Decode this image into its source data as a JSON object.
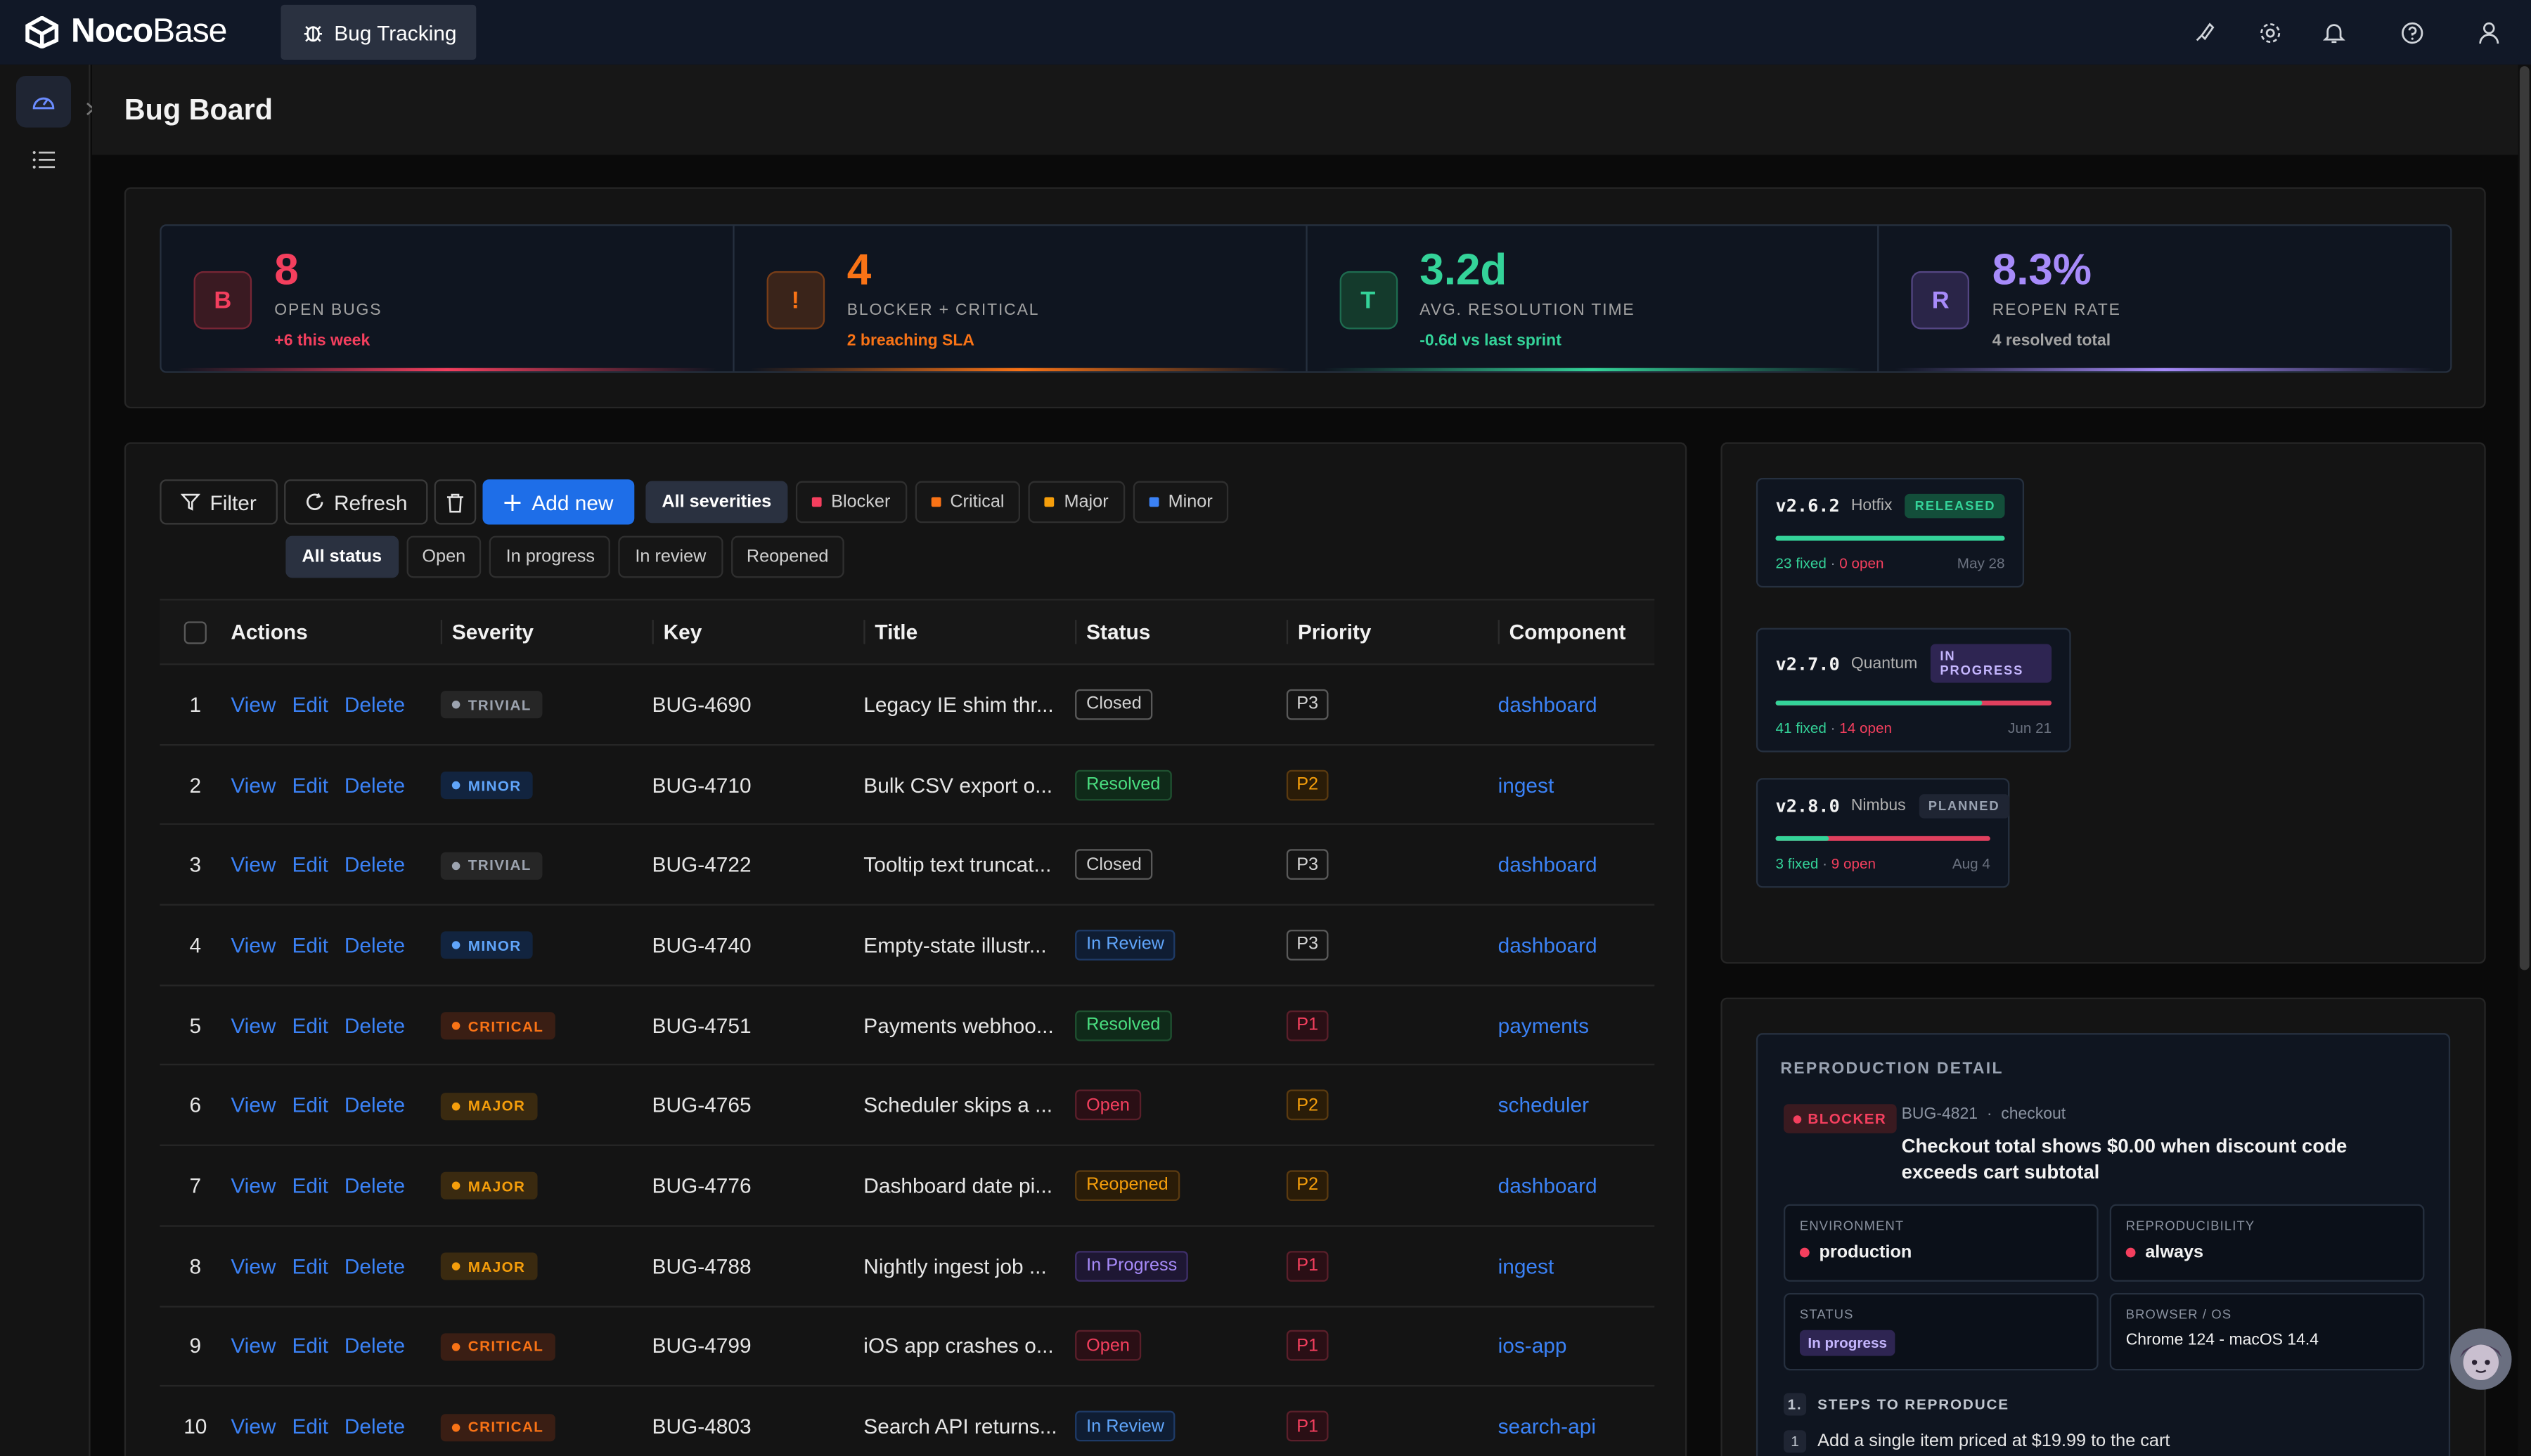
{
  "app": {
    "logo_bold": "Noco",
    "logo_light": "Base",
    "tab_label": "Bug Tracking",
    "page_title": "Bug Board"
  },
  "stats": [
    {
      "avatar": "B",
      "value": "8",
      "label": "OPEN BUGS",
      "sub": "+6 this week",
      "color": "#f43f5e",
      "sub_color": "#f43f5e"
    },
    {
      "avatar": "!",
      "value": "4",
      "label": "BLOCKER + CRITICAL",
      "sub": "2 breaching SLA",
      "color": "#f97316",
      "sub_color": "#f97316"
    },
    {
      "avatar": "T",
      "value": "3.2d",
      "label": "AVG. RESOLUTION TIME",
      "sub": "-0.6d vs last sprint",
      "color": "#34d399",
      "sub_color": "#34d399"
    },
    {
      "avatar": "R",
      "value": "8.3%",
      "label": "REOPEN RATE",
      "sub": "4 resolved total",
      "color": "#a78bfa",
      "sub_color": "#a3a3a3"
    }
  ],
  "toolbar": {
    "filter": "Filter",
    "refresh": "Refresh",
    "add_new": "Add new",
    "severity_chips": [
      "All severities",
      "Blocker",
      "Critical",
      "Major",
      "Minor"
    ],
    "status_chips": [
      "All status",
      "Open",
      "In progress",
      "In review",
      "Reopened"
    ]
  },
  "table": {
    "columns": [
      "Actions",
      "Severity",
      "Key",
      "Title",
      "Status",
      "Priority",
      "Component"
    ],
    "actions": [
      "View",
      "Edit",
      "Delete"
    ],
    "rows": [
      {
        "idx": "1",
        "severity": "TRIVIAL",
        "key": "BUG-4690",
        "title": "Legacy IE shim thr...",
        "status": "Closed",
        "priority": "P3",
        "component": "dashboard"
      },
      {
        "idx": "2",
        "severity": "MINOR",
        "key": "BUG-4710",
        "title": "Bulk CSV export o...",
        "status": "Resolved",
        "priority": "P2",
        "component": "ingest"
      },
      {
        "idx": "3",
        "severity": "TRIVIAL",
        "key": "BUG-4722",
        "title": "Tooltip text truncat...",
        "status": "Closed",
        "priority": "P3",
        "component": "dashboard"
      },
      {
        "idx": "4",
        "severity": "MINOR",
        "key": "BUG-4740",
        "title": "Empty-state illustr...",
        "status": "In Review",
        "priority": "P3",
        "component": "dashboard"
      },
      {
        "idx": "5",
        "severity": "CRITICAL",
        "key": "BUG-4751",
        "title": "Payments webhoo...",
        "status": "Resolved",
        "priority": "P1",
        "component": "payments"
      },
      {
        "idx": "6",
        "severity": "MAJOR",
        "key": "BUG-4765",
        "title": "Scheduler skips a ...",
        "status": "Open",
        "priority": "P2",
        "component": "scheduler"
      },
      {
        "idx": "7",
        "severity": "MAJOR",
        "key": "BUG-4776",
        "title": "Dashboard date pi...",
        "status": "Reopened",
        "priority": "P2",
        "component": "dashboard"
      },
      {
        "idx": "8",
        "severity": "MAJOR",
        "key": "BUG-4788",
        "title": "Nightly ingest job ...",
        "status": "In Progress",
        "priority": "P1",
        "component": "ingest"
      },
      {
        "idx": "9",
        "severity": "CRITICAL",
        "key": "BUG-4799",
        "title": "iOS app crashes o...",
        "status": "Open",
        "priority": "P1",
        "component": "ios-app"
      },
      {
        "idx": "10",
        "severity": "CRITICAL",
        "key": "BUG-4803",
        "title": "Search API returns...",
        "status": "In Review",
        "priority": "P1",
        "component": "search-api"
      }
    ]
  },
  "releases": [
    {
      "version": "v2.6.2",
      "name": "Hotfix",
      "badge": "RELEASED",
      "fixed": "23 fixed",
      "open": "0 open",
      "date": "May 28",
      "progress": 1.0
    },
    {
      "version": "v2.7.0",
      "name": "Quantum",
      "badge": "IN PROGRESS",
      "fixed": "41 fixed",
      "open": "14 open",
      "date": "Jun 21",
      "progress": 0.75
    },
    {
      "version": "v2.8.0",
      "name": "Nimbus",
      "badge": "PLANNED",
      "fixed": "3 fixed",
      "open": "9 open",
      "date": "Aug 4",
      "progress": 0.25
    }
  ],
  "detail": {
    "heading": "REPRODUCTION DETAIL",
    "badge": "BLOCKER",
    "key": "BUG-4821",
    "sep": "·",
    "component": "checkout",
    "title": "Checkout total shows $0.00 when discount code exceeds cart subtotal",
    "env_label": "ENVIRONMENT",
    "env_value": "production",
    "repro_label": "REPRODUCIBILITY",
    "repro_value": "always",
    "status_label": "STATUS",
    "status_value": "In progress",
    "browser_label": "BROWSER / OS",
    "browser_value": "Chrome 124 - macOS 14.4",
    "steps_num": "1.",
    "steps_label": "STEPS TO REPRODUCE",
    "step1_num": "1",
    "step1": "Add a single item priced at $19.99 to the cart"
  }
}
